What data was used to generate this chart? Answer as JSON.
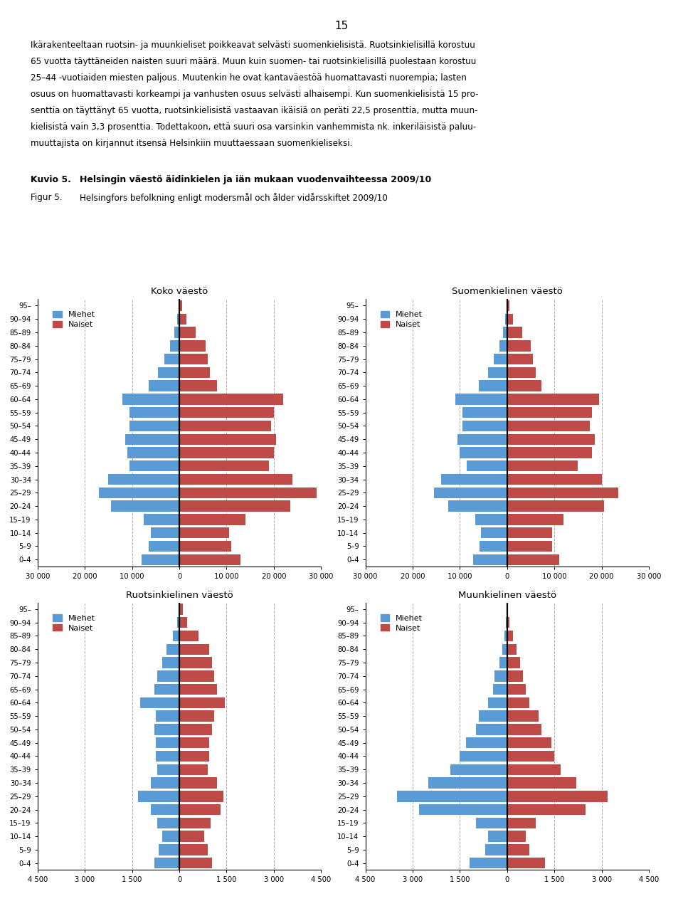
{
  "page_number": "15",
  "age_groups": [
    "95–",
    "90–94",
    "85–89",
    "80–84",
    "75–79",
    "70–74",
    "65–69",
    "60–64",
    "55–59",
    "50–54",
    "45–49",
    "40–44",
    "35–39",
    "30–34",
    "25–29",
    "20–24",
    "15–19",
    "10–14",
    "5–9",
    "0–4"
  ],
  "kuvio_label": "Kuvio 5.",
  "kuvio_title": "Helsingin väestö äidinkielen ja iän mukaan vuodenvaihteessa 2009/10",
  "figur_label": "Figur 5.",
  "figur_title": "Helsingfors befolkning enligt modersmål och ålder vidårsskiftet 2009/10",
  "color_men": "#5B9BD5",
  "color_women": "#BE4B48",
  "text_lines": [
    "Ikärakenteeltaan ruotsin- ja muunkieliset poikkeavat selvästi suomenkielisistä. Ruotsinkielisillä korostuu",
    "65 vuotta täyttäneiden naisten suuri määrä. Muun kuin suomen- tai ruotsinkielisillä puolestaan korostuu",
    "25–44 -vuotiaiden miesten paljous. Muutenkin he ovat kantaväestöä huomattavasti nuorempia; lasten",
    "osuus on huomattavasti korkeampi ja vanhusten osuus selvästi alhaisempi. Kun suomenkielisistä 15 pro-",
    "senttia on täyttänyt 65 vuotta, ruotsinkielisistä vastaavan ikäisiä on peräti 22,5 prosenttia, mutta muun-",
    "kielisistä vain 3,3 prosenttia. Todettakoon, että suuri osa varsinkin vanhemmista nk. inkeriläisistä paluu-",
    "muuttajista on kirjannut itsensä Helsinkiin muuttaessaan suomenkieliseksi."
  ],
  "panels": [
    {
      "title": "Koko väestö",
      "xlim": 30000,
      "xticks": [
        -30000,
        -20000,
        -10000,
        0,
        10000,
        20000,
        30000
      ],
      "xticklabels": [
        "30 000",
        "20 000",
        "10 000",
        "0",
        "10 000",
        "20 000",
        "30 000"
      ],
      "gridlines": [
        -20000,
        -10000,
        10000,
        20000
      ],
      "men": [
        200,
        400,
        1000,
        2000,
        3200,
        4500,
        6500,
        12000,
        10500,
        10500,
        11500,
        11000,
        10500,
        15000,
        17000,
        14500,
        7500,
        6000,
        6500,
        8000
      ],
      "women": [
        600,
        1500,
        3500,
        5500,
        6000,
        6500,
        8000,
        22000,
        20000,
        19500,
        20500,
        20000,
        19000,
        24000,
        29000,
        23500,
        14000,
        10500,
        11000,
        13000
      ]
    },
    {
      "title": "Suomenkielinen väestö",
      "xlim": 30000,
      "xticks": [
        -30000,
        -20000,
        -10000,
        0,
        10000,
        20000,
        30000
      ],
      "xticklabels": [
        "30 000",
        "20 000",
        "10 000",
        "0",
        "10 000",
        "20 000",
        "30 000"
      ],
      "gridlines": [
        -20000,
        -10000,
        10000,
        20000
      ],
      "men": [
        150,
        350,
        800,
        1700,
        2800,
        4000,
        6000,
        11000,
        9500,
        9500,
        10500,
        10000,
        8500,
        14000,
        15500,
        12500,
        6800,
        5500,
        5800,
        7200
      ],
      "women": [
        500,
        1300,
        3200,
        5000,
        5500,
        6000,
        7200,
        19500,
        18000,
        17500,
        18500,
        18000,
        15000,
        20000,
        23500,
        20500,
        12000,
        9500,
        9500,
        11000
      ]
    },
    {
      "title": "Ruotsinkielinen väestö",
      "xlim": 4500,
      "xticks": [
        -4500,
        -3000,
        -1500,
        0,
        1500,
        3000,
        4500
      ],
      "xticklabels": [
        "4 500",
        "3 000",
        "1 500",
        "0",
        "1 500",
        "3 000",
        "4 500"
      ],
      "gridlines": [
        -3000,
        -1500,
        1500,
        3000
      ],
      "men": [
        30,
        60,
        200,
        400,
        550,
        700,
        800,
        1250,
        750,
        800,
        750,
        750,
        700,
        900,
        1300,
        900,
        700,
        550,
        650,
        800
      ],
      "women": [
        120,
        250,
        600,
        950,
        1050,
        1100,
        1200,
        1450,
        1100,
        1050,
        950,
        950,
        900,
        1200,
        1400,
        1300,
        1000,
        800,
        900,
        1050
      ]
    },
    {
      "title": "Muunkielinen väestö",
      "xlim": 4500,
      "xticks": [
        -4500,
        -3000,
        -1500,
        0,
        1500,
        3000,
        4500
      ],
      "xticklabels": [
        "4 500",
        "3 000",
        "1 500",
        "0",
        "1 500",
        "3 000",
        "4 500"
      ],
      "gridlines": [
        -3000,
        -1500,
        1500,
        3000
      ],
      "men": [
        10,
        30,
        80,
        150,
        250,
        400,
        450,
        600,
        900,
        1000,
        1300,
        1500,
        1800,
        2500,
        3500,
        2800,
        1000,
        600,
        700,
        1200
      ],
      "women": [
        30,
        80,
        180,
        300,
        400,
        500,
        600,
        700,
        1000,
        1100,
        1400,
        1500,
        1700,
        2200,
        3200,
        2500,
        900,
        600,
        700,
        1200
      ]
    }
  ]
}
